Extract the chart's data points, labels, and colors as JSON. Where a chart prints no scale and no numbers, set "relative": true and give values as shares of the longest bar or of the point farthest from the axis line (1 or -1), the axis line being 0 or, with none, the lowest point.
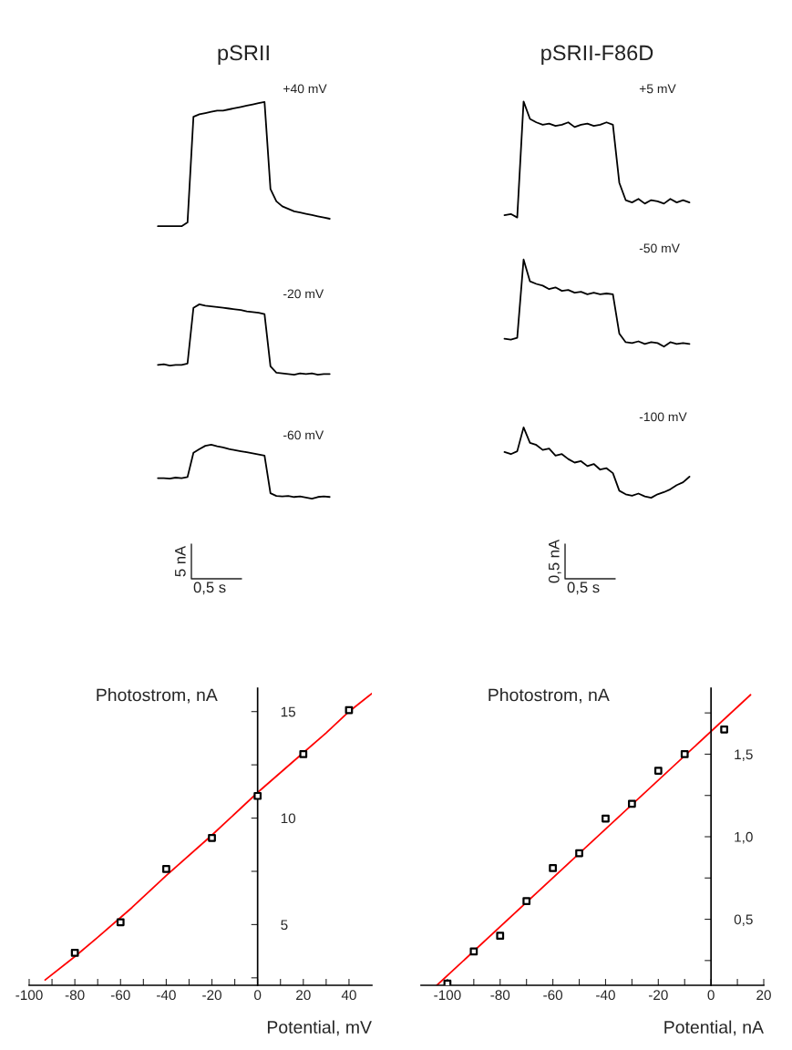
{
  "chart_data": [
    {
      "type": "line",
      "relative": true,
      "title": "pSRII",
      "annotations": [
        "+40 mV"
      ],
      "categories": [
        null,
        null,
        null,
        null,
        null,
        null,
        null,
        null,
        null,
        null,
        null,
        null,
        null,
        null,
        null,
        null,
        null,
        null,
        null,
        null,
        null,
        null,
        null,
        null,
        null,
        null,
        null,
        null,
        null,
        null
      ],
      "series": [
        {
          "color": "#000000",
          "values": [
            0,
            0,
            0,
            0,
            0,
            0.03,
            0.88,
            0.9,
            0.91,
            0.92,
            0.93,
            0.93,
            0.94,
            0.95,
            0.96,
            0.97,
            0.98,
            0.99,
            1.0,
            0.3,
            0.2,
            0.16,
            0.14,
            0.12,
            0.11,
            0.1,
            0.09,
            0.08,
            0.07,
            0.06
          ]
        }
      ]
    },
    {
      "type": "line",
      "relative": true,
      "title": "pSRII-F86D",
      "annotations": [
        "+5 mV"
      ],
      "categories": [
        null,
        null,
        null,
        null,
        null,
        null,
        null,
        null,
        null,
        null,
        null,
        null,
        null,
        null,
        null,
        null,
        null,
        null,
        null,
        null,
        null,
        null,
        null,
        null,
        null,
        null,
        null,
        null,
        null,
        null
      ],
      "series": [
        {
          "color": "#000000",
          "values": [
            0.02,
            0.03,
            0.0,
            1.0,
            0.85,
            0.82,
            0.8,
            0.81,
            0.79,
            0.8,
            0.82,
            0.78,
            0.8,
            0.81,
            0.79,
            0.8,
            0.82,
            0.8,
            0.3,
            0.15,
            0.13,
            0.16,
            0.12,
            0.15,
            0.14,
            0.12,
            0.16,
            0.13,
            0.15,
            0.13
          ]
        }
      ]
    },
    {
      "type": "line",
      "relative": true,
      "annotations": [
        "-20 mV"
      ],
      "categories": [
        null,
        null,
        null,
        null,
        null,
        null,
        null,
        null,
        null,
        null,
        null,
        null,
        null,
        null,
        null,
        null,
        null,
        null,
        null,
        null,
        null,
        null,
        null,
        null,
        null,
        null,
        null,
        null,
        null,
        null
      ],
      "series": [
        {
          "color": "#000000",
          "values": [
            0.14,
            0.15,
            0.13,
            0.14,
            0.14,
            0.16,
            0.95,
            1.0,
            0.98,
            0.97,
            0.96,
            0.95,
            0.94,
            0.93,
            0.92,
            0.9,
            0.89,
            0.88,
            0.86,
            0.12,
            0.03,
            0.02,
            0.01,
            0.0,
            0.02,
            0.01,
            0.02,
            0.0,
            0.01,
            0.01
          ]
        }
      ]
    },
    {
      "type": "line",
      "relative": true,
      "annotations": [
        "-50 mV"
      ],
      "categories": [
        null,
        null,
        null,
        null,
        null,
        null,
        null,
        null,
        null,
        null,
        null,
        null,
        null,
        null,
        null,
        null,
        null,
        null,
        null,
        null,
        null,
        null,
        null,
        null,
        null,
        null,
        null,
        null,
        null,
        null
      ],
      "series": [
        {
          "color": "#000000",
          "values": [
            0.09,
            0.08,
            0.1,
            1.0,
            0.75,
            0.72,
            0.7,
            0.66,
            0.68,
            0.64,
            0.65,
            0.62,
            0.63,
            0.6,
            0.62,
            0.6,
            0.61,
            0.6,
            0.15,
            0.05,
            0.04,
            0.06,
            0.03,
            0.05,
            0.04,
            0.0,
            0.05,
            0.03,
            0.04,
            0.03
          ]
        }
      ]
    },
    {
      "type": "line",
      "relative": true,
      "annotations": [
        "-60 mV",
        "5 nA",
        "0,5 s"
      ],
      "categories": [
        null,
        null,
        null,
        null,
        null,
        null,
        null,
        null,
        null,
        null,
        null,
        null,
        null,
        null,
        null,
        null,
        null,
        null,
        null,
        null,
        null,
        null,
        null,
        null,
        null,
        null,
        null,
        null,
        null,
        null
      ],
      "series": [
        {
          "color": "#000000",
          "values": [
            0.38,
            0.38,
            0.37,
            0.39,
            0.38,
            0.4,
            0.85,
            0.92,
            0.98,
            1.0,
            0.97,
            0.95,
            0.92,
            0.9,
            0.88,
            0.86,
            0.84,
            0.82,
            0.8,
            0.1,
            0.05,
            0.04,
            0.05,
            0.03,
            0.04,
            0.02,
            0.0,
            0.03,
            0.04,
            0.03
          ]
        }
      ]
    },
    {
      "type": "line",
      "relative": true,
      "annotations": [
        "-100 mV",
        "0,5 nA",
        "0,5 s"
      ],
      "categories": [
        null,
        null,
        null,
        null,
        null,
        null,
        null,
        null,
        null,
        null,
        null,
        null,
        null,
        null,
        null,
        null,
        null,
        null,
        null,
        null,
        null,
        null,
        null,
        null,
        null,
        null,
        null,
        null,
        null,
        null
      ],
      "series": [
        {
          "color": "#000000",
          "values": [
            0.65,
            0.62,
            0.66,
            1.0,
            0.78,
            0.75,
            0.68,
            0.7,
            0.6,
            0.62,
            0.55,
            0.5,
            0.52,
            0.45,
            0.48,
            0.4,
            0.42,
            0.35,
            0.1,
            0.05,
            0.03,
            0.06,
            0.02,
            0.0,
            0.05,
            0.08,
            0.12,
            0.18,
            0.22,
            0.3
          ]
        }
      ]
    },
    {
      "type": "scatter",
      "xlabel": "Potential, mV",
      "ylabel": "Photostrom, nA",
      "marker": "square",
      "xlim": [
        -100,
        50
      ],
      "ylim": [
        2.15,
        16.1
      ],
      "xticks": [
        -100,
        {
          "value": -90,
          "label": null
        },
        -80,
        {
          "value": -70,
          "label": null
        },
        -60,
        {
          "value": -50,
          "label": null
        },
        -40,
        {
          "value": -30,
          "label": null
        },
        -20,
        {
          "value": -10,
          "label": null
        },
        0,
        {
          "value": 10,
          "label": null
        },
        20,
        {
          "value": 30,
          "label": null
        },
        40
      ],
      "yticks": [
        {
          "value": 2.5,
          "label": null
        },
        5,
        {
          "value": 7.5,
          "label": null
        },
        10,
        {
          "value": 12.5,
          "label": null
        },
        15
      ],
      "series": [
        {
          "color": "#000000",
          "x": [
            -80,
            -60,
            -40,
            -20,
            0,
            20,
            40
          ],
          "values": [
            3.67,
            5.11,
            7.61,
            9.07,
            11.04,
            13.0,
            15.07
          ]
        },
        {
          "type": "line",
          "color": "#ff0000",
          "marker": "none",
          "x": [
            -93,
            -80,
            -70,
            -55,
            -40,
            -20,
            0,
            15,
            30,
            40,
            50
          ],
          "values": [
            2.4,
            3.5,
            4.4,
            5.8,
            7.3,
            9.2,
            11.2,
            12.6,
            14.0,
            15.0,
            15.85
          ]
        }
      ]
    },
    {
      "type": "scatter",
      "xlabel": "Potential, nA",
      "ylabel": "Photostrom, nA",
      "marker": "square",
      "xlim": [
        -110,
        20
      ],
      "ylim": [
        0.1,
        1.9
      ],
      "xticks": [
        -100,
        {
          "value": -90,
          "label": null
        },
        -80,
        {
          "value": -70,
          "label": null
        },
        -60,
        {
          "value": -50,
          "label": null
        },
        -40,
        {
          "value": -30,
          "label": null
        },
        -20,
        {
          "value": -10,
          "label": null
        },
        0,
        {
          "value": 10,
          "label": null
        },
        20
      ],
      "yticks": [
        {
          "value": 0.25,
          "label": null
        },
        {
          "value": 0.5,
          "label": "0,5"
        },
        {
          "value": 0.75,
          "label": null
        },
        {
          "value": 1.0,
          "label": "1,0"
        },
        {
          "value": 1.25,
          "label": null
        },
        {
          "value": 1.5,
          "label": "1,5"
        },
        {
          "value": 1.75,
          "label": null
        }
      ],
      "series": [
        {
          "color": "#000000",
          "x": [
            -100,
            -90,
            -80,
            -70,
            -60,
            -50,
            -40,
            -30,
            -20,
            -10,
            5
          ],
          "values": [
            0.11,
            0.305,
            0.4,
            0.61,
            0.81,
            0.9,
            1.11,
            1.2,
            1.4,
            1.5,
            1.65
          ]
        },
        {
          "type": "line",
          "color": "#ff0000",
          "marker": "none",
          "x": [
            -104,
            15
          ],
          "values": [
            0.1,
            1.86
          ]
        }
      ]
    }
  ]
}
